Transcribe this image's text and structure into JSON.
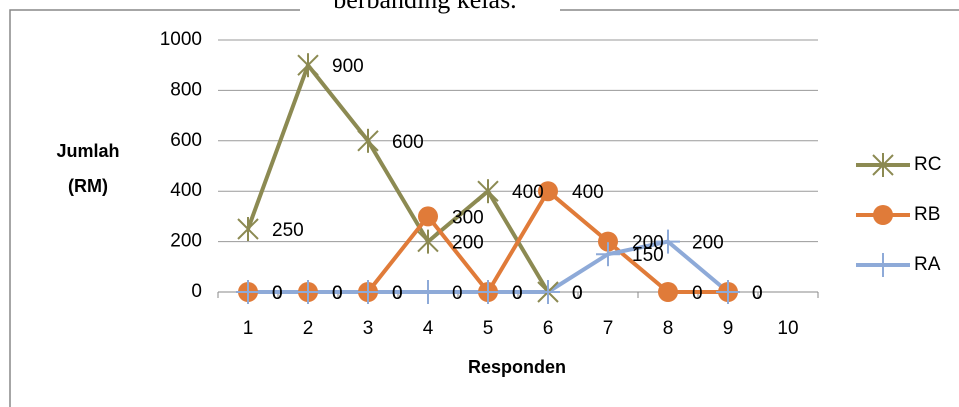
{
  "caption": "berbanding kelas.",
  "chart_data": {
    "type": "line",
    "categories": [
      "1",
      "2",
      "3",
      "4",
      "5",
      "6",
      "7",
      "8",
      "9",
      "10"
    ],
    "series": [
      {
        "name": "RC",
        "color": "#8c8a52",
        "marker": "asterisk",
        "values": [
          250,
          900,
          600,
          200,
          400,
          0,
          null,
          null,
          null,
          null
        ]
      },
      {
        "name": "RB",
        "color": "#e07b39",
        "marker": "circle",
        "values": [
          0,
          0,
          0,
          300,
          0,
          400,
          200,
          0,
          0,
          null
        ]
      },
      {
        "name": "RA",
        "color": "#8eaad8",
        "marker": "plus",
        "values": [
          0,
          0,
          0,
          0,
          0,
          0,
          150,
          200,
          0,
          null
        ]
      }
    ],
    "ylabel": [
      "Jumlah",
      "(RM)"
    ],
    "xlabel": "Responden",
    "ylim": [
      0,
      1000
    ],
    "yticks": [
      0,
      200,
      400,
      600,
      800,
      1000
    ],
    "grid": true,
    "legend": "right",
    "data_labels": true
  }
}
